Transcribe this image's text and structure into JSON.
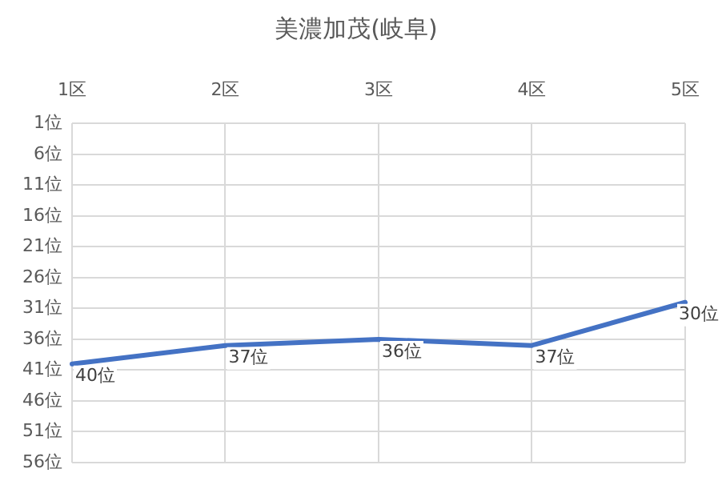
{
  "chart_data": {
    "type": "line",
    "title": "美濃加茂(岐阜)",
    "categories": [
      "1区",
      "2区",
      "3区",
      "4区",
      "5区"
    ],
    "series": [
      {
        "color": "#4472c4",
        "values": [
          40,
          37,
          36,
          37,
          30
        ],
        "value_labels": [
          "40位",
          "37位",
          "36位",
          "37位",
          "30位"
        ]
      }
    ],
    "ylim": [
      56,
      1
    ],
    "yticks": [
      {
        "value": 1,
        "label": "1位"
      },
      {
        "value": 6,
        "label": "6位"
      },
      {
        "value": 11,
        "label": "11位"
      },
      {
        "value": 16,
        "label": "16位"
      },
      {
        "value": 21,
        "label": "21位"
      },
      {
        "value": 26,
        "label": "26位"
      },
      {
        "value": 31,
        "label": "31位"
      },
      {
        "value": 36,
        "label": "36位"
      },
      {
        "value": 41,
        "label": "41位"
      },
      {
        "value": 46,
        "label": "46位"
      },
      {
        "value": 51,
        "label": "51位"
      },
      {
        "value": 56,
        "label": "56位"
      }
    ],
    "grid": true,
    "legend": false,
    "marker": "none",
    "line_style": "solid"
  }
}
